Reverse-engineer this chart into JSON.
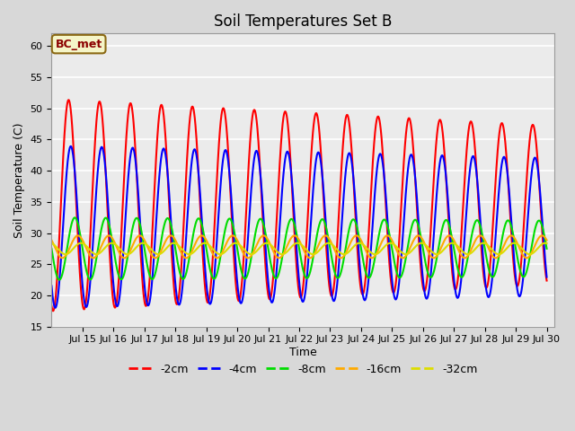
{
  "title": "Soil Temperatures Set B",
  "xlabel": "Time",
  "ylabel": "Soil Temperature (C)",
  "ylim": [
    15,
    62
  ],
  "yticks": [
    15,
    20,
    25,
    30,
    35,
    40,
    45,
    50,
    55,
    60
  ],
  "xlim_days": [
    14.0,
    30.25
  ],
  "annotation_text": "BC_met",
  "series": {
    "-2cm": {
      "color": "#ff0000",
      "lw": 1.5
    },
    "-4cm": {
      "color": "#0000ff",
      "lw": 1.5
    },
    "-8cm": {
      "color": "#00dd00",
      "lw": 1.5
    },
    "-16cm": {
      "color": "#ffaa00",
      "lw": 1.5
    },
    "-32cm": {
      "color": "#dddd00",
      "lw": 1.5
    }
  },
  "legend_order": [
    "-2cm",
    "-4cm",
    "-8cm",
    "-16cm",
    "-32cm"
  ],
  "facecolor": "#d8d8d8",
  "inner_facecolor": "#ebebeb",
  "grid_color": "#ffffff",
  "title_fontsize": 12,
  "label_fontsize": 9,
  "tick_fontsize": 8,
  "legend_fontsize": 9
}
